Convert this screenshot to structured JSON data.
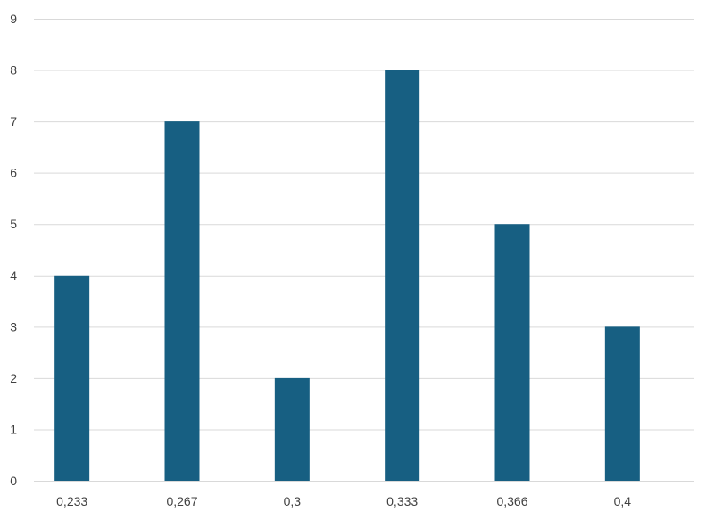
{
  "chart_data": {
    "type": "bar",
    "categories": [
      "0,233",
      "0,267",
      "0,3",
      "0,333",
      "0,366",
      "0,4"
    ],
    "values": [
      4,
      7,
      2,
      8,
      5,
      3
    ],
    "title": "",
    "xlabel": "",
    "ylabel": "",
    "ylim": [
      0,
      9
    ],
    "yticks": [
      "0",
      "1",
      "2",
      "3",
      "4",
      "5",
      "6",
      "7",
      "8",
      "9"
    ],
    "grid": true,
    "legend": "none",
    "colors": {
      "bar": "#175f82",
      "grid": "#d9d9d9",
      "text": "#404040"
    }
  }
}
